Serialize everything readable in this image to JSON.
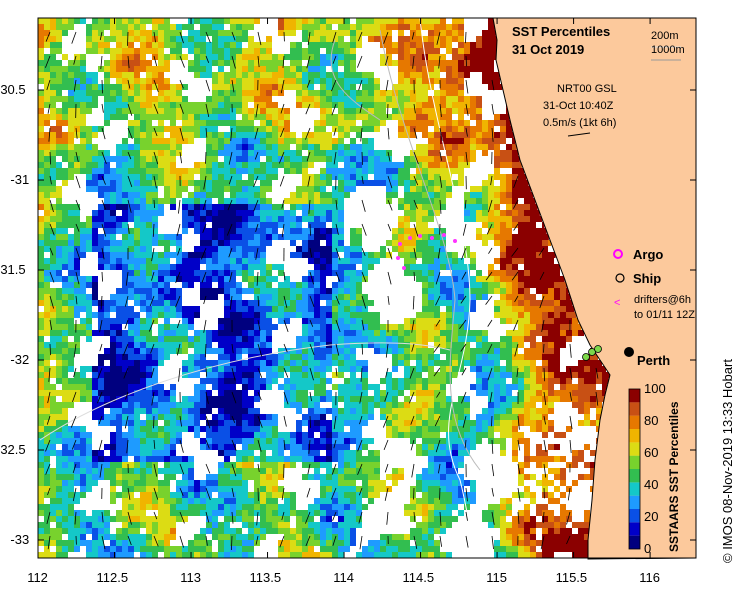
{
  "title": {
    "line1": "SST Percentiles",
    "line2": "31 Oct 2019"
  },
  "depth_legend": {
    "d1": "200m",
    "d2": "1000m"
  },
  "current_info": {
    "line1": "NRT00 GSL",
    "line2": "31-Oct 10:40Z",
    "line3": "0.5m/s (1kt 6h)"
  },
  "markers": {
    "argo": "Argo",
    "ship": "Ship",
    "drifters1": "drifters@6h",
    "drifters2": "to 01/11 12Z"
  },
  "place": {
    "perth": "Perth"
  },
  "colorbar": {
    "label": "SSTAARS SST Percentiles",
    "ticks": [
      "100",
      "80",
      "60",
      "40",
      "20",
      "0"
    ],
    "colors": [
      "#00007f",
      "#0000c8",
      "#0a50e6",
      "#1e9bff",
      "#14c8c8",
      "#32be50",
      "#78d22d",
      "#dcdc14",
      "#f0b400",
      "#e67800",
      "#c85014",
      "#8b0000"
    ]
  },
  "axes": {
    "x_ticks": [
      "112",
      "112.5",
      "113",
      "113.5",
      "114",
      "114.5",
      "115",
      "115.5",
      "116"
    ],
    "y_ticks": [
      "-30.5",
      "-31",
      "-31.5",
      "-32",
      "-32.5",
      "-33"
    ],
    "xlim": [
      112,
      116.3
    ],
    "ylim": [
      -33.1,
      -30.1
    ]
  },
  "credit": "© IMOS 08-Nov-2019 13:33 Hobart",
  "colors": {
    "land": "#fcc99c",
    "cloud": "#ffffff"
  }
}
